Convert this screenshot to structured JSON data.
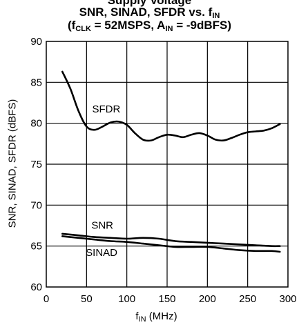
{
  "chart_data": {
    "type": "line",
    "title_top": "Supply Voltage",
    "title_main": "SNR, SINAD, SFDR vs. f",
    "title_main_sub": "IN",
    "title_line2_pre": "(f",
    "title_line2_sub1": "CLK",
    "title_line2_mid": " = 52MSPS, A",
    "title_line2_sub2": "IN",
    "title_line2_post": " = -9dBFS)",
    "xlabel": "f",
    "xlabel_sub": "IN",
    "xlabel_unit": " (MHz)",
    "ylabel": "SNR, SINAD, SFDR (dBFS)",
    "xlim": [
      0,
      300
    ],
    "ylim": [
      60,
      90
    ],
    "xticks": [
      "0",
      "50",
      "100",
      "150",
      "200",
      "250",
      "300"
    ],
    "yticks": [
      "60",
      "65",
      "70",
      "75",
      "80",
      "85",
      "90"
    ],
    "grid": true,
    "series": [
      {
        "name": "SFDR",
        "x": [
          20,
          30,
          40,
          50,
          60,
          70,
          80,
          90,
          100,
          110,
          120,
          130,
          140,
          150,
          160,
          170,
          180,
          190,
          200,
          210,
          220,
          230,
          240,
          250,
          260,
          270,
          280,
          290
        ],
        "y": [
          86.3,
          84.2,
          81.5,
          79.6,
          79.2,
          79.6,
          80.1,
          80.2,
          79.8,
          78.8,
          78.0,
          77.9,
          78.3,
          78.6,
          78.5,
          78.3,
          78.6,
          78.8,
          78.5,
          78.0,
          77.9,
          78.2,
          78.6,
          78.9,
          79.0,
          79.1,
          79.4,
          79.9
        ]
      },
      {
        "name": "SNR",
        "x": [
          20,
          40,
          60,
          80,
          100,
          120,
          140,
          160,
          180,
          200,
          220,
          240,
          260,
          280,
          290
        ],
        "y": [
          66.5,
          66.3,
          66.1,
          66.0,
          65.9,
          66.0,
          65.9,
          65.6,
          65.5,
          65.4,
          65.3,
          65.2,
          65.1,
          65.0,
          65.0
        ]
      },
      {
        "name": "SINAD",
        "x": [
          20,
          40,
          60,
          80,
          100,
          120,
          140,
          160,
          180,
          200,
          220,
          240,
          260,
          280,
          290
        ],
        "y": [
          66.2,
          66.0,
          65.8,
          65.6,
          65.5,
          65.3,
          65.1,
          64.9,
          64.9,
          64.9,
          64.7,
          64.5,
          64.4,
          64.4,
          64.3
        ]
      }
    ],
    "annotations": [
      {
        "text": "SFDR",
        "x": 57,
        "y": 81.3
      },
      {
        "text": "SNR",
        "x": 56,
        "y": 67.1
      },
      {
        "text": "SINAD",
        "x": 49,
        "y": 63.8
      }
    ]
  }
}
